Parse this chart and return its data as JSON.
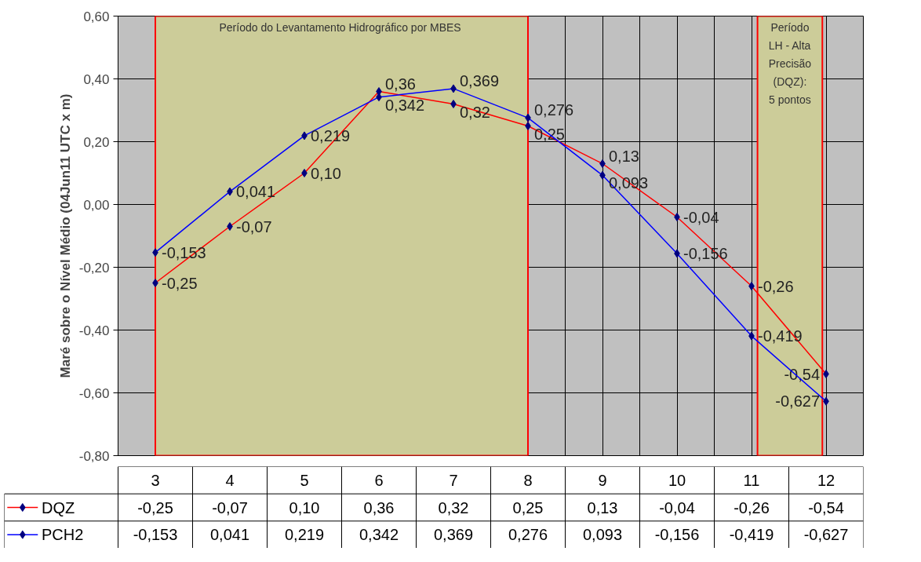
{
  "chart_data": {
    "type": "line",
    "ylabel": "Maré sobre o Nível Médio (04Jun11 UTC x m)",
    "x": [
      3,
      4,
      5,
      6,
      7,
      8,
      9,
      10,
      11,
      12
    ],
    "xlim": [
      2.5,
      12.5
    ],
    "xticks": [
      3,
      4,
      5,
      6,
      7,
      8,
      9,
      10,
      11,
      12
    ],
    "ylim": [
      -0.8,
      0.6
    ],
    "yticks": [
      {
        "value": -0.8,
        "label": "-0,80"
      },
      {
        "value": -0.6,
        "label": "-0,60"
      },
      {
        "value": -0.4,
        "label": "-0,40"
      },
      {
        "value": -0.2,
        "label": "-0,20"
      },
      {
        "value": 0,
        "label": "0,00"
      },
      {
        "value": 0.2,
        "label": "0,20"
      },
      {
        "value": 0.4,
        "label": "0,40"
      },
      {
        "value": 0.6,
        "label": "0,60"
      }
    ],
    "series": [
      {
        "name": "DQZ",
        "color": "#ff0000",
        "values": [
          -0.25,
          -0.07,
          0.1,
          0.36,
          0.32,
          0.25,
          0.13,
          -0.04,
          -0.26,
          -0.54
        ],
        "value_labels": [
          "-0,25",
          "-0,07",
          "0,10",
          "0,36",
          "0,32",
          "0,25",
          "0,13",
          "-0,04",
          "-0,26",
          "-0,54"
        ]
      },
      {
        "name": "PCH2",
        "color": "#0000ff",
        "values": [
          -0.153,
          0.041,
          0.219,
          0.342,
          0.369,
          0.276,
          0.093,
          -0.156,
          -0.419,
          -0.627
        ],
        "value_labels": [
          "-0,153",
          "0,041",
          "0,219",
          "0,342",
          "0,369",
          "0,276",
          "0,093",
          "-0,156",
          "-0,419",
          "-0,627"
        ]
      }
    ],
    "bands": [
      {
        "axis": "x",
        "from": 3,
        "to": 8,
        "label": "Período  do Levantamento Hidrográfico por MBES",
        "color": "#cccc99"
      },
      {
        "axis": "x",
        "from": 11.08,
        "to": 11.95,
        "label": "Período\nLH - Alta\nPrecisão\n(DQZ):\n5 pontos",
        "color": "#cccc99"
      }
    ],
    "marker": "diamond",
    "line_style": "solid",
    "grid": true,
    "legend": "bottom"
  }
}
